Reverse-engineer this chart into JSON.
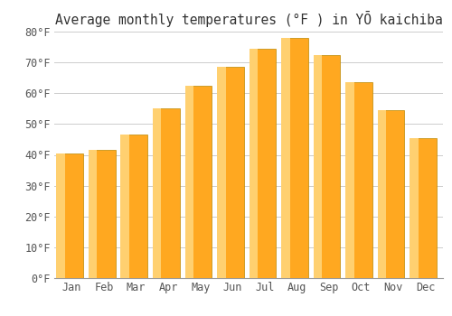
{
  "title": "Average monthly temperatures (°F ) in YŌ kaichiba",
  "months": [
    "Jan",
    "Feb",
    "Mar",
    "Apr",
    "May",
    "Jun",
    "Jul",
    "Aug",
    "Sep",
    "Oct",
    "Nov",
    "Dec"
  ],
  "values": [
    40.5,
    41.5,
    46.5,
    55.0,
    62.5,
    68.5,
    74.5,
    78.0,
    72.5,
    63.5,
    54.5,
    45.5
  ],
  "bar_color_main": "#FFA820",
  "bar_color_light": "#FFD070",
  "bar_edge_color": "#BB8800",
  "ylim": [
    0,
    80
  ],
  "yticks": [
    0,
    10,
    20,
    30,
    40,
    50,
    60,
    70,
    80
  ],
  "ytick_labels": [
    "0°F",
    "10°F",
    "20°F",
    "30°F",
    "40°F",
    "50°F",
    "60°F",
    "70°F",
    "80°F"
  ],
  "background_color": "#ffffff",
  "grid_color": "#cccccc",
  "title_fontsize": 10.5,
  "tick_fontsize": 8.5
}
